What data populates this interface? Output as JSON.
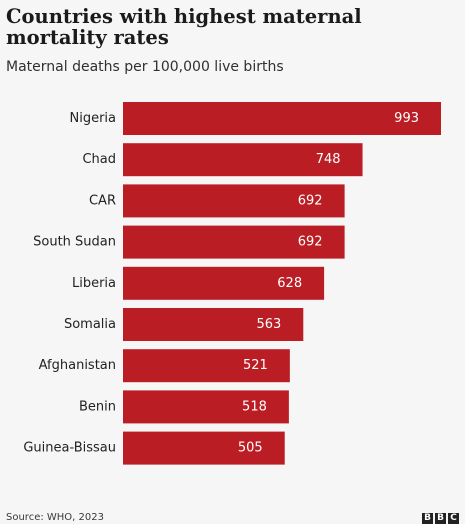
{
  "header": {
    "title": "Countries with highest maternal mortality rates",
    "subtitle": "Maternal deaths per 100,000 live births"
  },
  "footer": {
    "source": "Source: WHO, 2023",
    "logo_letters": [
      "B",
      "B",
      "C"
    ]
  },
  "colors": {
    "bar": "#bb1d24",
    "background": "#f6f6f6",
    "text": "#222222"
  },
  "chart_data": {
    "type": "bar",
    "orientation": "horizontal",
    "title": "Countries with highest maternal mortality rates",
    "subtitle": "Maternal deaths per 100,000 live births",
    "categories": [
      "Nigeria",
      "Chad",
      "CAR",
      "South Sudan",
      "Liberia",
      "Somalia",
      "Afghanistan",
      "Benin",
      "Guinea-Bissau"
    ],
    "values": [
      993,
      748,
      692,
      692,
      628,
      563,
      521,
      518,
      505
    ],
    "value_labels": true,
    "grid": false,
    "xlim": [
      0,
      993
    ]
  }
}
